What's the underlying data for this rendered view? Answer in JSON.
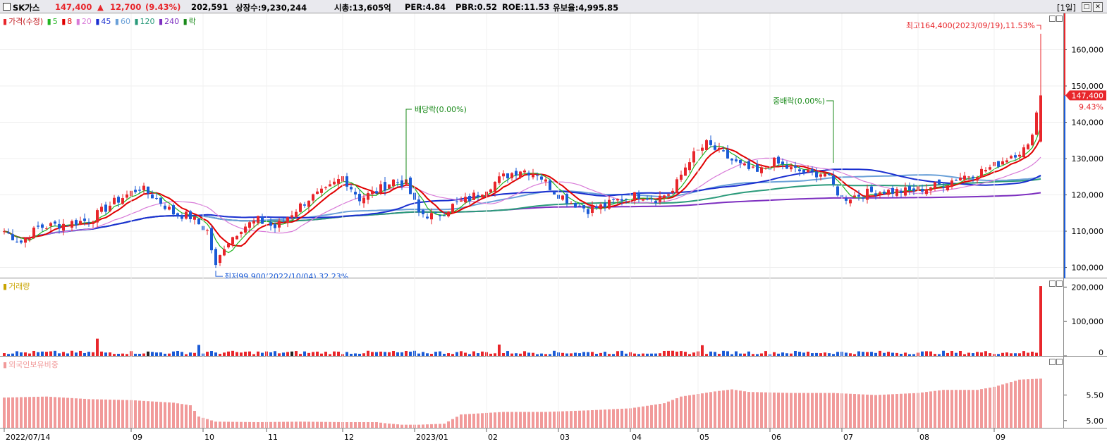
{
  "header": {
    "stock_name": "SK가스",
    "price": "147,400",
    "change_arrow": "▲",
    "change": "12,700",
    "change_pct": "(9.43%)",
    "volume": "202,591",
    "listed_shares": "상장수:9,230,244",
    "market_cap": "시총:13,605억",
    "per": "PER:4.84",
    "pbr": "PBR:0.52",
    "roe": "ROE:11.53",
    "reserve_ratio": "유보율:4,995.85",
    "period": "[1일]",
    "window_buttons": [
      "□",
      "✕"
    ]
  },
  "price_panel": {
    "legend": {
      "price": "가격(수정)",
      "ma5": "5",
      "ma8": "8",
      "ma20": "20",
      "ma45": "45",
      "ma60": "60",
      "ma120": "120",
      "ma240": "240",
      "ex": "락"
    },
    "annotations": {
      "high": "최고164,400(2023/09/19),11.53%",
      "low": "최저99,900(2022/10/04),32.23%",
      "dividend1": "배당락(0.00%)",
      "dividend2": "중배락(0.00%)"
    },
    "current_price_tag": "147,400",
    "current_pct_tag": "9.43%",
    "y_ticks": [
      "160,000",
      "150,000",
      "140,000",
      "130,000",
      "120,000",
      "110,000",
      "100,000"
    ]
  },
  "volume_panel": {
    "legend": "거래량",
    "y_ticks": [
      "200,000",
      "100,000",
      "0"
    ]
  },
  "foreign_panel": {
    "legend": "외국인보유비중",
    "y_ticks": [
      "5.50",
      "5.00"
    ]
  },
  "x_axis": [
    "2022/07/14",
    "09",
    "10",
    "11",
    "12",
    "2023/01",
    "02",
    "03",
    "04",
    "05",
    "06",
    "07",
    "08",
    "09"
  ],
  "colors": {
    "up": "#e8262b",
    "down": "#1b5bd6",
    "ma5": "#21b421",
    "ma8": "#e00000",
    "ma20": "#d87ad8",
    "ma45": "#1a2fd0",
    "ma60": "#6aa0d8",
    "ma120": "#2a9a7a",
    "ma240": "#7d2fc0",
    "ex": "#1a8a1a",
    "foreign": "#f19a9a"
  },
  "chart_data": [
    {
      "type": "candlestick",
      "title": "SK가스",
      "series_name": "가격(수정)",
      "ylim": [
        97000,
        170000
      ],
      "x_labels": [
        "2022/07/14",
        "09",
        "10",
        "11",
        "12",
        "2023/01",
        "02",
        "03",
        "04",
        "05",
        "06",
        "07",
        "08",
        "09"
      ],
      "close_path": [
        [
          0,
          110000
        ],
        [
          4,
          107000
        ],
        [
          8,
          111000
        ],
        [
          14,
          112000
        ],
        [
          20,
          113000
        ],
        [
          26,
          118000
        ],
        [
          32,
          122000
        ],
        [
          36,
          119000
        ],
        [
          40,
          115000
        ],
        [
          44,
          114000
        ],
        [
          48,
          110000
        ],
        [
          50,
          100000
        ],
        [
          52,
          106000
        ],
        [
          56,
          111000
        ],
        [
          60,
          113000
        ],
        [
          64,
          111000
        ],
        [
          68,
          115000
        ],
        [
          72,
          119000
        ],
        [
          76,
          121000
        ],
        [
          80,
          125000
        ],
        [
          84,
          119000
        ],
        [
          88,
          121000
        ],
        [
          92,
          124000
        ],
        [
          95,
          123000
        ],
        [
          98,
          115000
        ],
        [
          102,
          114000
        ],
        [
          106,
          117000
        ],
        [
          110,
          119000
        ],
        [
          114,
          122000
        ],
        [
          118,
          125000
        ],
        [
          122,
          127000
        ],
        [
          126,
          126000
        ],
        [
          130,
          121000
        ],
        [
          134,
          118000
        ],
        [
          138,
          116000
        ],
        [
          142,
          117000
        ],
        [
          146,
          119000
        ],
        [
          150,
          120000
        ],
        [
          154,
          119000
        ],
        [
          158,
          121000
        ],
        [
          162,
          130000
        ],
        [
          166,
          134000
        ],
        [
          170,
          131000
        ],
        [
          174,
          128000
        ],
        [
          178,
          126000
        ],
        [
          182,
          129000
        ],
        [
          186,
          127000
        ],
        [
          190,
          126000
        ],
        [
          194,
          126000
        ],
        [
          198,
          119000
        ],
        [
          202,
          120000
        ],
        [
          206,
          121000
        ],
        [
          210,
          121000
        ],
        [
          214,
          121000
        ],
        [
          218,
          122000
        ],
        [
          222,
          123000
        ],
        [
          226,
          125000
        ],
        [
          230,
          126000
        ],
        [
          234,
          128000
        ],
        [
          238,
          131000
        ],
        [
          242,
          133000
        ],
        [
          245,
          147400
        ]
      ],
      "highest": {
        "label": "최고",
        "value": 164400,
        "date": "2023/09/19"
      },
      "lowest": {
        "label": "최저",
        "value": 99900,
        "date": "2022/10/04"
      },
      "moving_averages": [
        "5",
        "8",
        "20",
        "45",
        "60",
        "120",
        "240"
      ]
    },
    {
      "type": "bar",
      "series_name": "거래량",
      "ylim": [
        0,
        215000
      ],
      "last_value": 202591,
      "typical_range": [
        5000,
        15000
      ]
    },
    {
      "type": "bar",
      "series_name": "외국인보유비중",
      "ylim": [
        4.86,
        6.25
      ],
      "path": [
        [
          0,
          5.45
        ],
        [
          10,
          5.47
        ],
        [
          20,
          5.42
        ],
        [
          30,
          5.4
        ],
        [
          40,
          5.35
        ],
        [
          44,
          5.3
        ],
        [
          46,
          5.08
        ],
        [
          50,
          4.98
        ],
        [
          60,
          4.97
        ],
        [
          70,
          4.98
        ],
        [
          80,
          4.97
        ],
        [
          88,
          4.97
        ],
        [
          90,
          4.95
        ],
        [
          94,
          4.92
        ],
        [
          98,
          4.92
        ],
        [
          104,
          4.94
        ],
        [
          108,
          5.12
        ],
        [
          118,
          5.17
        ],
        [
          128,
          5.17
        ],
        [
          138,
          5.2
        ],
        [
          148,
          5.24
        ],
        [
          156,
          5.34
        ],
        [
          160,
          5.47
        ],
        [
          168,
          5.57
        ],
        [
          172,
          5.61
        ],
        [
          176,
          5.56
        ],
        [
          186,
          5.54
        ],
        [
          196,
          5.54
        ],
        [
          206,
          5.5
        ],
        [
          216,
          5.54
        ],
        [
          222,
          5.6
        ],
        [
          230,
          5.6
        ],
        [
          234,
          5.66
        ],
        [
          240,
          5.8
        ],
        [
          245,
          5.82
        ]
      ]
    }
  ]
}
